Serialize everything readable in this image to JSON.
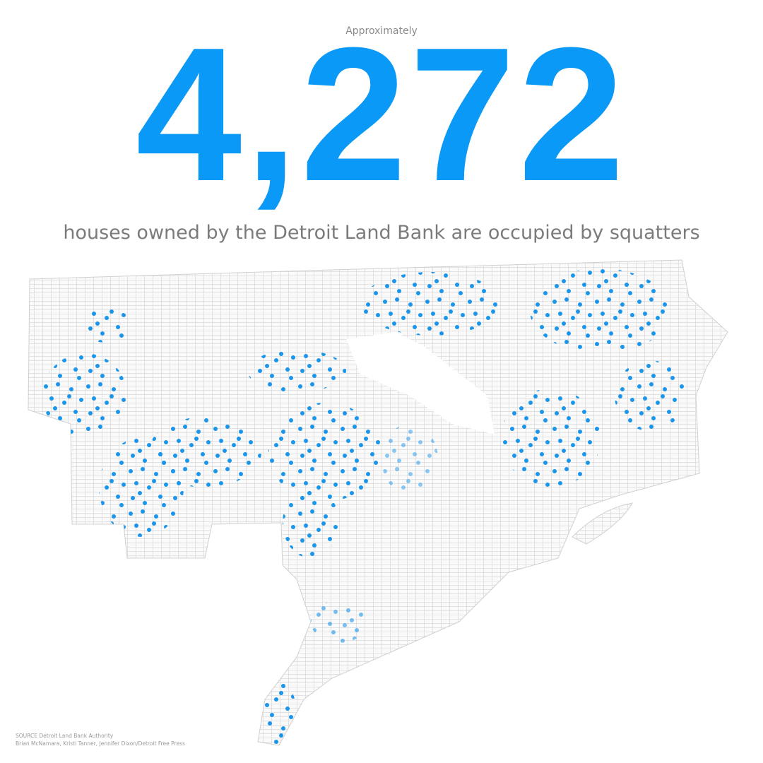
{
  "header": {
    "kicker": "Approximately",
    "number": "4,272",
    "subtitle": "houses owned by the Detroit Land Bank are occupied by squatters"
  },
  "footer": {
    "source": "SOURCE Detroit Land Bank Authority",
    "credit": "Brian McNamara, Kristi Tanner, Jennifer Dixon/Detroit Free Press"
  }
}
